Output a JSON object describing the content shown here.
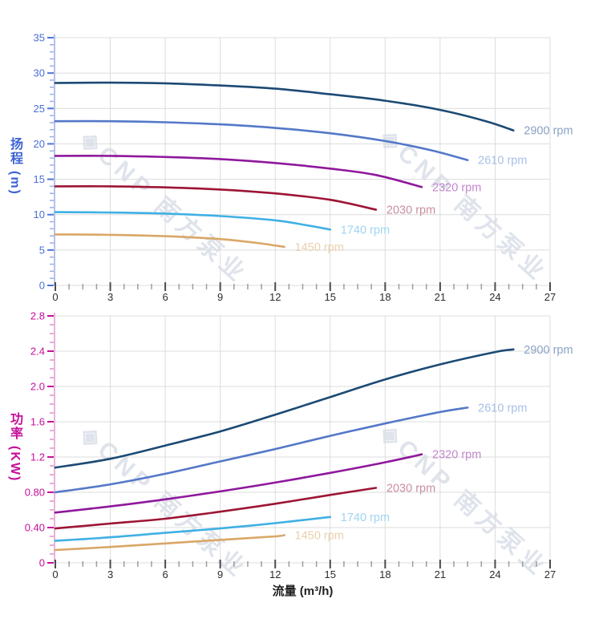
{
  "watermark": {
    "logo_glyph": "◈",
    "text": "CNP 南方泵业",
    "color": "#c5cddc"
  },
  "chart_data": [
    {
      "type": "line",
      "title": "",
      "ylabel_cjk": "扬程",
      "ylabel_unit": "(m)",
      "ylabel": "扬程 (m)",
      "xlabel": "",
      "xlim": [
        0,
        27
      ],
      "ylim": [
        0,
        35
      ],
      "x_major_step": 3,
      "x_minor_step": 0.75,
      "y_major_step": 5,
      "y_minor_step": 1,
      "grid": true,
      "legend_position": "end-of-line",
      "x_tick_labels": [
        "0",
        "3",
        "6",
        "9",
        "12",
        "15",
        "18",
        "21",
        "24",
        "27"
      ],
      "y_tick_labels": [
        "35",
        "30",
        "25",
        "20",
        "15",
        "10",
        "5",
        "0"
      ],
      "colors": {
        "axis_text": "#4a6fd8",
        "axis_line": "#b6c2ea",
        "major_tick": "#4f74d8",
        "minor_tick": "#9aaee6",
        "x_text": "#2d2d2d",
        "x_major_tick": "#4c4c4c",
        "x_minor_tick": "#9e9e9e",
        "grid": "#dcdcdc"
      },
      "series": [
        {
          "name": "2900 rpm",
          "color": "#1c4a73",
          "label_color": "#8aa2c4",
          "points": [
            [
              0,
              28.6
            ],
            [
              3,
              28.65
            ],
            [
              6,
              28.55
            ],
            [
              9,
              28.25
            ],
            [
              12,
              27.8
            ],
            [
              15,
              27.0
            ],
            [
              18,
              26.1
            ],
            [
              21,
              24.8
            ],
            [
              23.5,
              23.2
            ],
            [
              25,
              21.9
            ]
          ]
        },
        {
          "name": "2610 rpm",
          "color": "#5478c8",
          "label_color": "#a8bfe8",
          "points": [
            [
              0,
              23.2
            ],
            [
              3,
              23.2
            ],
            [
              6,
              23.05
            ],
            [
              9,
              22.75
            ],
            [
              12,
              22.25
            ],
            [
              15,
              21.5
            ],
            [
              18,
              20.4
            ],
            [
              20.5,
              19.1
            ],
            [
              22.5,
              17.7
            ]
          ]
        },
        {
          "name": "2320 rpm",
          "color": "#8f189c",
          "label_color": "#c387cd",
          "points": [
            [
              0,
              18.3
            ],
            [
              3,
              18.3
            ],
            [
              6,
              18.15
            ],
            [
              9,
              17.85
            ],
            [
              12,
              17.3
            ],
            [
              15,
              16.5
            ],
            [
              17.5,
              15.6
            ],
            [
              20,
              13.9
            ]
          ]
        },
        {
          "name": "2030 rpm",
          "color": "#9d1535",
          "label_color": "#c98f9f",
          "points": [
            [
              0,
              14.0
            ],
            [
              3,
              14.0
            ],
            [
              6,
              13.85
            ],
            [
              9,
              13.55
            ],
            [
              12,
              13.0
            ],
            [
              15,
              12.1
            ],
            [
              17.5,
              10.7
            ]
          ]
        },
        {
          "name": "1740 rpm",
          "color": "#3fb0e4",
          "label_color": "#9fd4f2",
          "points": [
            [
              0,
              10.35
            ],
            [
              3,
              10.3
            ],
            [
              6,
              10.15
            ],
            [
              9,
              9.8
            ],
            [
              12,
              9.2
            ],
            [
              13.5,
              8.6
            ],
            [
              15,
              7.9
            ]
          ]
        },
        {
          "name": "1450 rpm",
          "color": "#d9a767",
          "label_color": "#ead0ab",
          "points": [
            [
              0,
              7.2
            ],
            [
              3,
              7.15
            ],
            [
              6,
              6.95
            ],
            [
              9,
              6.55
            ],
            [
              11,
              6.0
            ],
            [
              12.5,
              5.45
            ]
          ]
        }
      ]
    },
    {
      "type": "line",
      "title": "",
      "ylabel_cjk": "功率",
      "ylabel_unit": "(KW)",
      "ylabel": "功率 (KW)",
      "xlabel": "流量 (m³/h)",
      "xlim": [
        0,
        27
      ],
      "ylim": [
        0,
        2.8
      ],
      "x_major_step": 3,
      "x_minor_step": 0.75,
      "y_major_step": 0.4,
      "y_minor_step": 0.1,
      "grid": true,
      "legend_position": "end-of-line",
      "x_tick_labels": [
        "0",
        "3",
        "6",
        "9",
        "12",
        "15",
        "18",
        "21",
        "24",
        "27"
      ],
      "y_tick_labels": [
        "2.8",
        "2.4",
        "2.0",
        "1.6",
        "1.2",
        "0.80",
        "0.40",
        "0"
      ],
      "colors": {
        "axis_text": "#c5109a",
        "axis_line": "#eab4da",
        "major_tick": "#c5109a",
        "minor_tick": "#dd8fcc",
        "x_text": "#2d2d2d",
        "x_major_tick": "#4c4c4c",
        "x_minor_tick": "#9e9e9e",
        "grid": "#dcdcdc"
      },
      "series": [
        {
          "name": "2900 rpm",
          "color": "#1c4a73",
          "label_color": "#8aa2c4",
          "points": [
            [
              0,
              1.08
            ],
            [
              3,
              1.18
            ],
            [
              6,
              1.33
            ],
            [
              9,
              1.49
            ],
            [
              12,
              1.68
            ],
            [
              15,
              1.88
            ],
            [
              18,
              2.08
            ],
            [
              21,
              2.25
            ],
            [
              24,
              2.39
            ],
            [
              25,
              2.42
            ]
          ]
        },
        {
          "name": "2610 rpm",
          "color": "#5478c8",
          "label_color": "#a8bfe8",
          "points": [
            [
              0,
              0.8
            ],
            [
              3,
              0.89
            ],
            [
              6,
              1.01
            ],
            [
              9,
              1.15
            ],
            [
              12,
              1.29
            ],
            [
              15,
              1.44
            ],
            [
              18,
              1.58
            ],
            [
              21,
              1.71
            ],
            [
              22.5,
              1.76
            ]
          ]
        },
        {
          "name": "2320 rpm",
          "color": "#8f189c",
          "label_color": "#c387cd",
          "points": [
            [
              0,
              0.57
            ],
            [
              3,
              0.64
            ],
            [
              6,
              0.72
            ],
            [
              9,
              0.81
            ],
            [
              12,
              0.91
            ],
            [
              15,
              1.02
            ],
            [
              18,
              1.14
            ],
            [
              20,
              1.23
            ]
          ]
        },
        {
          "name": "2030 rpm",
          "color": "#9d1535",
          "label_color": "#c98f9f",
          "points": [
            [
              0,
              0.39
            ],
            [
              3,
              0.445
            ],
            [
              6,
              0.5
            ],
            [
              9,
              0.58
            ],
            [
              12,
              0.67
            ],
            [
              15,
              0.77
            ],
            [
              17.5,
              0.85
            ]
          ]
        },
        {
          "name": "1740 rpm",
          "color": "#3fb0e4",
          "label_color": "#9fd4f2",
          "points": [
            [
              0,
              0.25
            ],
            [
              3,
              0.29
            ],
            [
              6,
              0.34
            ],
            [
              9,
              0.39
            ],
            [
              12,
              0.45
            ],
            [
              15,
              0.52
            ]
          ]
        },
        {
          "name": "1450 rpm",
          "color": "#d9a767",
          "label_color": "#ead0ab",
          "points": [
            [
              0,
              0.145
            ],
            [
              3,
              0.18
            ],
            [
              6,
              0.22
            ],
            [
              9,
              0.26
            ],
            [
              12,
              0.3
            ],
            [
              12.5,
              0.315
            ]
          ]
        }
      ]
    }
  ]
}
